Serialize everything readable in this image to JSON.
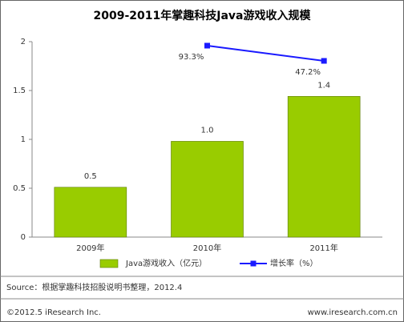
{
  "chart_data": {
    "type": "bar-line",
    "title": "2009-2011年掌趣科技Java游戏收入规模",
    "categories": [
      "2009年",
      "2010年",
      "2011年"
    ],
    "series": [
      {
        "name": "Java游戏收入（亿元）",
        "type": "bar",
        "color": "#99cc00",
        "values": [
          0.51,
          0.98,
          1.44
        ],
        "value_labels": [
          "0.5",
          "1.0",
          "1.4"
        ]
      },
      {
        "name": "增长率（%）",
        "type": "line",
        "color": "#1a1aff",
        "values": [
          null,
          93.3,
          47.2
        ],
        "value_labels": [
          null,
          "93.3%",
          "47.2%"
        ]
      }
    ],
    "ylim": [
      0,
      2
    ],
    "yticks": [
      0,
      0.5,
      1,
      1.5,
      2
    ]
  },
  "source": "Source：根据掌趣科技招股说明书整理，2012.4",
  "footer": {
    "left": "©2012.5 iResearch Inc.",
    "right": "www.iresearch.com.cn"
  }
}
